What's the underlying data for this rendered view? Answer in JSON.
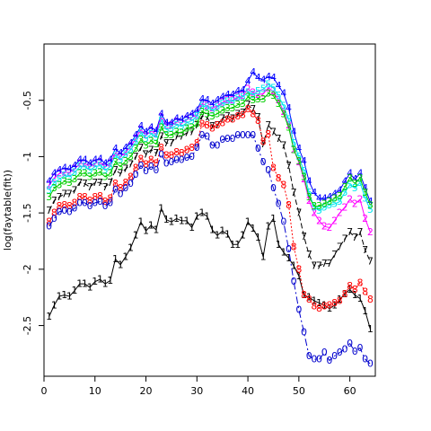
{
  "chart_data": {
    "type": "line",
    "title": "",
    "xlabel": "",
    "ylabel": "log(faytable(fit))",
    "xlim": [
      0,
      65
    ],
    "ylim": [
      -2.95,
      0.0
    ],
    "x_ticks": [
      0,
      10,
      20,
      30,
      40,
      50,
      60
    ],
    "y_ticks": [
      -2.5,
      -2.0,
      -1.5,
      -1.0,
      -0.5
    ],
    "grid": false,
    "legend": "none",
    "x": [
      1,
      2,
      3,
      4,
      5,
      6,
      7,
      8,
      9,
      10,
      11,
      12,
      13,
      14,
      15,
      16,
      17,
      18,
      19,
      20,
      21,
      22,
      23,
      24,
      25,
      26,
      27,
      28,
      29,
      30,
      31,
      32,
      33,
      34,
      35,
      36,
      37,
      38,
      39,
      40,
      41,
      42,
      43,
      44,
      45,
      46,
      47,
      48,
      49,
      50,
      51,
      52,
      53,
      54,
      55,
      56,
      57,
      58,
      59,
      60,
      61,
      62,
      63,
      64
    ],
    "series": [
      {
        "symbol": "1",
        "color": "#000000",
        "dash": "",
        "values": [
          -2.42,
          -2.32,
          -2.24,
          -2.23,
          -2.24,
          -2.19,
          -2.13,
          -2.13,
          -2.16,
          -2.11,
          -2.09,
          -2.13,
          -2.1,
          -1.91,
          -1.96,
          -1.89,
          -1.81,
          -1.7,
          -1.58,
          -1.66,
          -1.61,
          -1.65,
          -1.46,
          -1.56,
          -1.58,
          -1.55,
          -1.57,
          -1.57,
          -1.63,
          -1.53,
          -1.5,
          -1.53,
          -1.65,
          -1.7,
          -1.66,
          -1.69,
          -1.78,
          -1.78,
          -1.7,
          -1.58,
          -1.64,
          -1.72,
          -1.89,
          -1.62,
          -1.55,
          -1.78,
          -1.85,
          -1.9,
          -1.97,
          -2.06,
          -2.23,
          -2.25,
          -2.28,
          -2.3,
          -2.32,
          -2.35,
          -2.32,
          -2.27,
          -2.22,
          -2.18,
          -2.23,
          -2.26,
          -2.37,
          -2.53
        ]
      },
      {
        "symbol": "7",
        "color": "#000000",
        "dash": "6,3",
        "values": [
          -1.48,
          -1.39,
          -1.36,
          -1.33,
          -1.33,
          -1.3,
          -1.23,
          -1.24,
          -1.27,
          -1.23,
          -1.23,
          -1.27,
          -1.23,
          -1.12,
          -1.15,
          -1.11,
          -1.07,
          -1.0,
          -0.92,
          -0.98,
          -0.94,
          -0.97,
          -0.82,
          -0.88,
          -0.88,
          -0.82,
          -0.82,
          -0.79,
          -0.78,
          -0.72,
          -0.64,
          -0.65,
          -0.73,
          -0.72,
          -0.66,
          -0.64,
          -0.66,
          -0.62,
          -0.61,
          -0.54,
          -0.58,
          -0.65,
          -0.89,
          -0.72,
          -0.78,
          -0.84,
          -0.9,
          -1.08,
          -1.32,
          -1.5,
          -1.71,
          -1.87,
          -1.97,
          -1.97,
          -1.95,
          -1.95,
          -1.87,
          -1.8,
          -1.73,
          -1.67,
          -1.72,
          -1.67,
          -1.83,
          -1.93
        ]
      },
      {
        "symbol": "8",
        "color": "#ff0000",
        "dash": "2,2",
        "values": [
          -1.58,
          -1.5,
          -1.44,
          -1.43,
          -1.44,
          -1.41,
          -1.36,
          -1.36,
          -1.39,
          -1.36,
          -1.35,
          -1.4,
          -1.37,
          -1.24,
          -1.28,
          -1.23,
          -1.18,
          -1.1,
          -1.02,
          -1.07,
          -1.03,
          -1.06,
          -0.92,
          -0.99,
          -0.99,
          -0.96,
          -0.97,
          -0.94,
          -0.92,
          -0.88,
          -0.71,
          -0.72,
          -0.75,
          -0.72,
          -0.7,
          -0.67,
          -0.67,
          -0.64,
          -0.63,
          -0.58,
          -0.62,
          -0.68,
          -0.87,
          -0.8,
          -1.1,
          -1.19,
          -1.25,
          -1.43,
          -1.8,
          -2.0,
          -2.23,
          -2.27,
          -2.33,
          -2.35,
          -2.33,
          -2.32,
          -2.3,
          -2.28,
          -2.22,
          -2.15,
          -2.18,
          -2.12,
          -2.2,
          -2.27
        ]
      },
      {
        "symbol": "2",
        "color": "#ff00ff",
        "dash": "",
        "values": [
          -1.25,
          -1.19,
          -1.15,
          -1.14,
          -1.14,
          -1.11,
          -1.06,
          -1.06,
          -1.09,
          -1.06,
          -1.05,
          -1.09,
          -1.06,
          -0.97,
          -1.0,
          -0.96,
          -0.91,
          -0.84,
          -0.76,
          -0.81,
          -0.77,
          -0.8,
          -0.65,
          -0.72,
          -0.72,
          -0.69,
          -0.7,
          -0.67,
          -0.65,
          -0.63,
          -0.53,
          -0.55,
          -0.57,
          -0.55,
          -0.52,
          -0.5,
          -0.5,
          -0.47,
          -0.46,
          -0.4,
          -0.43,
          -0.45,
          -0.44,
          -0.39,
          -0.42,
          -0.5,
          -0.6,
          -0.72,
          -0.94,
          -1.05,
          -1.2,
          -1.39,
          -1.5,
          -1.57,
          -1.62,
          -1.63,
          -1.57,
          -1.5,
          -1.45,
          -1.38,
          -1.42,
          -1.38,
          -1.55,
          -1.67
        ]
      },
      {
        "symbol": "0",
        "color": "#0000cd",
        "dash": "8,3,2,3",
        "values": [
          -1.62,
          -1.55,
          -1.49,
          -1.48,
          -1.49,
          -1.46,
          -1.41,
          -1.41,
          -1.44,
          -1.41,
          -1.4,
          -1.44,
          -1.41,
          -1.29,
          -1.33,
          -1.28,
          -1.24,
          -1.16,
          -1.08,
          -1.13,
          -1.09,
          -1.12,
          -0.98,
          -1.06,
          -1.05,
          -1.03,
          -1.03,
          -1.01,
          -1.0,
          -0.92,
          -0.81,
          -0.82,
          -0.9,
          -0.9,
          -0.85,
          -0.84,
          -0.84,
          -0.81,
          -0.81,
          -0.81,
          -0.81,
          -0.93,
          -1.05,
          -1.12,
          -1.28,
          -1.42,
          -1.58,
          -1.82,
          -2.11,
          -2.36,
          -2.56,
          -2.77,
          -2.8,
          -2.8,
          -2.74,
          -2.81,
          -2.77,
          -2.74,
          -2.71,
          -2.66,
          -2.73,
          -2.7,
          -2.8,
          -2.84
        ]
      },
      {
        "symbol": "4",
        "color": "#0000ff",
        "dash": "",
        "values": [
          -1.22,
          -1.15,
          -1.12,
          -1.1,
          -1.11,
          -1.08,
          -1.03,
          -1.03,
          -1.06,
          -1.03,
          -1.02,
          -1.06,
          -1.03,
          -0.93,
          -0.97,
          -0.92,
          -0.88,
          -0.81,
          -0.73,
          -0.78,
          -0.74,
          -0.77,
          -0.62,
          -0.7,
          -0.7,
          -0.66,
          -0.67,
          -0.64,
          -0.62,
          -0.59,
          -0.49,
          -0.5,
          -0.53,
          -0.5,
          -0.47,
          -0.45,
          -0.45,
          -0.42,
          -0.41,
          -0.33,
          -0.25,
          -0.3,
          -0.32,
          -0.29,
          -0.3,
          -0.37,
          -0.44,
          -0.57,
          -0.78,
          -0.93,
          -1.04,
          -1.22,
          -1.32,
          -1.37,
          -1.37,
          -1.36,
          -1.33,
          -1.3,
          -1.22,
          -1.15,
          -1.2,
          -1.15,
          -1.28,
          -1.4
        ]
      },
      {
        "symbol": "5",
        "color": "#00e5ee",
        "dash": "",
        "values": [
          -1.3,
          -1.23,
          -1.2,
          -1.17,
          -1.18,
          -1.14,
          -1.09,
          -1.09,
          -1.12,
          -1.09,
          -1.08,
          -1.12,
          -1.09,
          -0.99,
          -1.03,
          -0.98,
          -0.94,
          -0.87,
          -0.79,
          -0.84,
          -0.8,
          -0.83,
          -0.68,
          -0.76,
          -0.75,
          -0.72,
          -0.73,
          -0.7,
          -0.68,
          -0.64,
          -0.55,
          -0.56,
          -0.59,
          -0.56,
          -0.53,
          -0.51,
          -0.51,
          -0.48,
          -0.47,
          -0.43,
          -0.45,
          -0.42,
          -0.4,
          -0.36,
          -0.39,
          -0.46,
          -0.55,
          -0.67,
          -0.88,
          -1.0,
          -1.13,
          -1.32,
          -1.45,
          -1.48,
          -1.45,
          -1.43,
          -1.42,
          -1.4,
          -1.32,
          -1.25,
          -1.28,
          -1.23,
          -1.37,
          -1.47
        ]
      },
      {
        "symbol": "3",
        "color": "#00cd00",
        "dash": "",
        "values": [
          -1.36,
          -1.28,
          -1.25,
          -1.22,
          -1.23,
          -1.2,
          -1.15,
          -1.15,
          -1.18,
          -1.15,
          -1.14,
          -1.18,
          -1.15,
          -1.05,
          -1.09,
          -1.04,
          -1.0,
          -0.93,
          -0.85,
          -0.9,
          -0.86,
          -0.89,
          -0.74,
          -0.81,
          -0.81,
          -0.78,
          -0.79,
          -0.75,
          -0.74,
          -0.71,
          -0.6,
          -0.62,
          -0.64,
          -0.62,
          -0.59,
          -0.57,
          -0.57,
          -0.54,
          -0.53,
          -0.47,
          -0.5,
          -0.49,
          -0.49,
          -0.44,
          -0.46,
          -0.53,
          -0.62,
          -0.74,
          -0.94,
          -1.04,
          -1.18,
          -1.36,
          -1.44,
          -1.44,
          -1.42,
          -1.4,
          -1.37,
          -1.35,
          -1.27,
          -1.19,
          -1.24,
          -1.19,
          -1.32,
          -1.43
        ]
      }
    ]
  }
}
